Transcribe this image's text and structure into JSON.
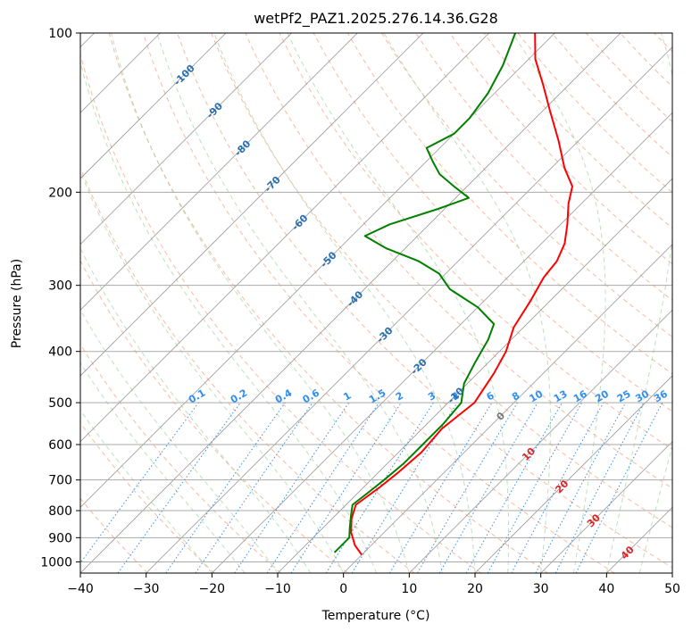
{
  "chart_data": {
    "type": "skewt",
    "title": "wetPf2_PAZ1.2025.276.14.36.G28",
    "xlabel": "Temperature (°C)",
    "ylabel": "Pressure (hPa)",
    "xlim": [
      -40,
      50
    ],
    "ylim": [
      1050,
      100
    ],
    "x_ticks": [
      {
        "v": -40,
        "label": "−40"
      },
      {
        "v": -30,
        "label": "−30"
      },
      {
        "v": -20,
        "label": "−20"
      },
      {
        "v": -10,
        "label": "−10"
      },
      {
        "v": 0,
        "label": "0"
      },
      {
        "v": 10,
        "label": "10"
      },
      {
        "v": 20,
        "label": "20"
      },
      {
        "v": 30,
        "label": "30"
      },
      {
        "v": 40,
        "label": "40"
      },
      {
        "v": 50,
        "label": "50"
      }
    ],
    "y_ticks": [
      {
        "v": 100,
        "label": "100"
      },
      {
        "v": 200,
        "label": "200"
      },
      {
        "v": 300,
        "label": "300"
      },
      {
        "v": 400,
        "label": "400"
      },
      {
        "v": 500,
        "label": "500"
      },
      {
        "v": 600,
        "label": "600"
      },
      {
        "v": 700,
        "label": "700"
      },
      {
        "v": 800,
        "label": "800"
      },
      {
        "v": 900,
        "label": "900"
      },
      {
        "v": 1000,
        "label": "1000"
      }
    ],
    "isotherm_labels": [
      {
        "t": -100,
        "p": 120,
        "label": "-100"
      },
      {
        "t": -90,
        "p": 140,
        "label": "-90"
      },
      {
        "t": -80,
        "p": 165,
        "label": "-80"
      },
      {
        "t": -70,
        "p": 193,
        "label": "-70"
      },
      {
        "t": -60,
        "p": 228,
        "label": "-60"
      },
      {
        "t": -50,
        "p": 268,
        "label": "-50"
      },
      {
        "t": -40,
        "p": 318,
        "label": "-40"
      },
      {
        "t": -30,
        "p": 372,
        "label": "-30"
      },
      {
        "t": -20,
        "p": 427,
        "label": "-20"
      },
      {
        "t": -10,
        "p": 484,
        "label": "-10"
      },
      {
        "t": 0,
        "p": 530,
        "label": "0"
      },
      {
        "t": 10,
        "p": 625,
        "label": "10"
      },
      {
        "t": 20,
        "p": 720,
        "label": "20"
      },
      {
        "t": 30,
        "p": 835,
        "label": "30"
      },
      {
        "t": 40,
        "p": 960,
        "label": "40"
      }
    ],
    "mixing_ratio_labels": [
      "0.1",
      "0.2",
      "0.4",
      "0.6",
      "1",
      "1.5",
      "2",
      "3",
      "4",
      "6",
      "8",
      "10",
      "13",
      "16",
      "20",
      "25",
      "30",
      "36"
    ],
    "series": [
      {
        "name": "Temperature",
        "color": "#ff0000",
        "points": [
          {
            "p": 970,
            "t": 0
          },
          {
            "p": 930,
            "t": -2.5
          },
          {
            "p": 880,
            "t": -5
          },
          {
            "p": 830,
            "t": -7
          },
          {
            "p": 780,
            "t": -8.5
          },
          {
            "p": 720,
            "t": -7.5
          },
          {
            "p": 680,
            "t": -7
          },
          {
            "p": 620,
            "t": -6.5
          },
          {
            "p": 560,
            "t": -7
          },
          {
            "p": 500,
            "t": -6
          },
          {
            "p": 440,
            "t": -7.5
          },
          {
            "p": 400,
            "t": -9
          },
          {
            "p": 360,
            "t": -11.5
          },
          {
            "p": 320,
            "t": -13
          },
          {
            "p": 290,
            "t": -14.5
          },
          {
            "p": 270,
            "t": -15
          },
          {
            "p": 250,
            "t": -16.5
          },
          {
            "p": 230,
            "t": -19
          },
          {
            "p": 210,
            "t": -22
          },
          {
            "p": 195,
            "t": -24
          },
          {
            "p": 180,
            "t": -28
          },
          {
            "p": 160,
            "t": -33
          },
          {
            "p": 140,
            "t": -39
          },
          {
            "p": 125,
            "t": -44
          },
          {
            "p": 112,
            "t": -49
          },
          {
            "p": 100,
            "t": -53
          }
        ]
      },
      {
        "name": "Dewpoint",
        "color": "#008000",
        "points": [
          {
            "p": 960,
            "t": -4.5
          },
          {
            "p": 900,
            "t": -4.5
          },
          {
            "p": 860,
            "t": -6
          },
          {
            "p": 820,
            "t": -7.5
          },
          {
            "p": 780,
            "t": -9
          },
          {
            "p": 740,
            "t": -8.5
          },
          {
            "p": 700,
            "t": -8
          },
          {
            "p": 650,
            "t": -7.5
          },
          {
            "p": 600,
            "t": -7.5
          },
          {
            "p": 550,
            "t": -7.5
          },
          {
            "p": 500,
            "t": -8
          },
          {
            "p": 460,
            "t": -10.5
          },
          {
            "p": 420,
            "t": -12
          },
          {
            "p": 380,
            "t": -13.5
          },
          {
            "p": 355,
            "t": -15
          },
          {
            "p": 330,
            "t": -20
          },
          {
            "p": 305,
            "t": -27
          },
          {
            "p": 285,
            "t": -31
          },
          {
            "p": 270,
            "t": -36
          },
          {
            "p": 255,
            "t": -43
          },
          {
            "p": 242,
            "t": -48
          },
          {
            "p": 230,
            "t": -46
          },
          {
            "p": 215,
            "t": -41
          },
          {
            "p": 205,
            "t": -38
          },
          {
            "p": 195,
            "t": -42
          },
          {
            "p": 185,
            "t": -46
          },
          {
            "p": 175,
            "t": -49
          },
          {
            "p": 165,
            "t": -52
          },
          {
            "p": 155,
            "t": -50
          },
          {
            "p": 145,
            "t": -50
          },
          {
            "p": 130,
            "t": -51
          },
          {
            "p": 115,
            "t": -53
          },
          {
            "p": 100,
            "t": -56
          }
        ]
      }
    ]
  }
}
